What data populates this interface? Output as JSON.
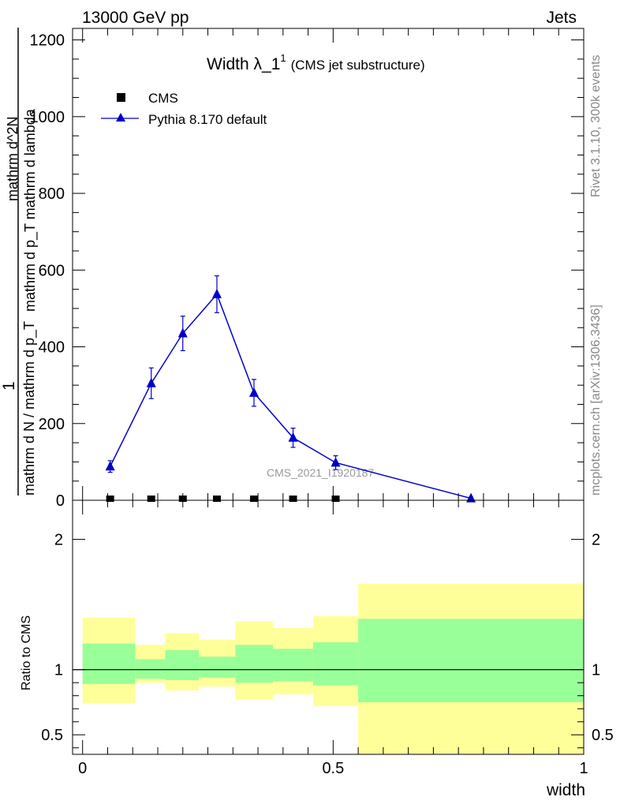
{
  "header": {
    "left": "13000 GeV pp",
    "right": "Jets"
  },
  "title": {
    "main": "Width λ_1",
    "sup": "1",
    "sub": "(CMS jet substructure)"
  },
  "side_text": {
    "rivet": "Rivet 3.1.10,  300k events",
    "mcplots": "mcplots.cern.ch [arXiv:1306.3436]"
  },
  "watermark": "CMS_2021_I1920187",
  "legend": {
    "items": [
      {
        "label": "CMS",
        "marker": "square",
        "color": "#000000"
      },
      {
        "label": "Pythia 8.170 default",
        "marker": "triangle",
        "color": "#0000cc"
      }
    ],
    "placement": "top-left"
  },
  "ylabel_main": {
    "one": "1",
    "den": "mathrm d N / mathrm d p_T",
    "den_sub": "T",
    "num": "mathrm d^2N",
    "num_line1": "mathrm d^2N",
    "num_line2": "mathrm d p_T mathrm d lambda",
    "num_sub": "T"
  },
  "ylabel_ratio": "Ratio to CMS",
  "xlabel": "width",
  "colors": {
    "mc": "#0000cc",
    "band_inner": "#99ff99",
    "band_outer": "#ffff99"
  },
  "chart_data": [
    {
      "type": "line",
      "panel": "main",
      "xlim": [
        -0.02,
        1.0
      ],
      "ylim": [
        0,
        1230
      ],
      "yticks": [
        0,
        200,
        400,
        600,
        800,
        1000,
        1200
      ],
      "series": [
        {
          "name": "CMS",
          "x": [
            0.055,
            0.137,
            0.2,
            0.268,
            0.342,
            0.42,
            0.505,
            0.775
          ],
          "y": [
            0,
            0,
            0,
            0,
            0,
            0,
            0,
            0
          ]
        },
        {
          "name": "Pythia 8.170 default",
          "x": [
            0.055,
            0.137,
            0.2,
            0.268,
            0.342,
            0.42,
            0.505,
            0.775
          ],
          "y": [
            88,
            305,
            435,
            537,
            280,
            163,
            98,
            5
          ],
          "err": [
            15,
            40,
            45,
            48,
            35,
            25,
            18,
            3
          ]
        }
      ]
    },
    {
      "type": "area",
      "panel": "ratio",
      "xlim": [
        -0.02,
        1.0
      ],
      "ylim": [
        0.35,
        2.3
      ],
      "yticks": [
        0.5,
        1,
        2
      ],
      "xticks": [
        0,
        0.5,
        1
      ],
      "reference": 1,
      "bins": [
        {
          "x0": 0.0,
          "x1": 0.105,
          "inner": [
            0.89,
            1.2
          ],
          "outer": [
            0.74,
            1.4
          ]
        },
        {
          "x0": 0.105,
          "x1": 0.165,
          "inner": [
            0.93,
            1.08
          ],
          "outer": [
            0.9,
            1.19
          ]
        },
        {
          "x0": 0.165,
          "x1": 0.232,
          "inner": [
            0.92,
            1.15
          ],
          "outer": [
            0.84,
            1.28
          ]
        },
        {
          "x0": 0.232,
          "x1": 0.305,
          "inner": [
            0.94,
            1.1
          ],
          "outer": [
            0.87,
            1.23
          ]
        },
        {
          "x0": 0.305,
          "x1": 0.38,
          "inner": [
            0.9,
            1.19
          ],
          "outer": [
            0.77,
            1.37
          ]
        },
        {
          "x0": 0.38,
          "x1": 0.46,
          "inner": [
            0.91,
            1.16
          ],
          "outer": [
            0.81,
            1.32
          ]
        },
        {
          "x0": 0.46,
          "x1": 0.55,
          "inner": [
            0.88,
            1.21
          ],
          "outer": [
            0.72,
            1.41
          ]
        },
        {
          "x0": 0.55,
          "x1": 1.0,
          "inner": [
            0.75,
            1.39
          ],
          "outer": [
            0.35,
            1.66
          ]
        }
      ]
    }
  ]
}
